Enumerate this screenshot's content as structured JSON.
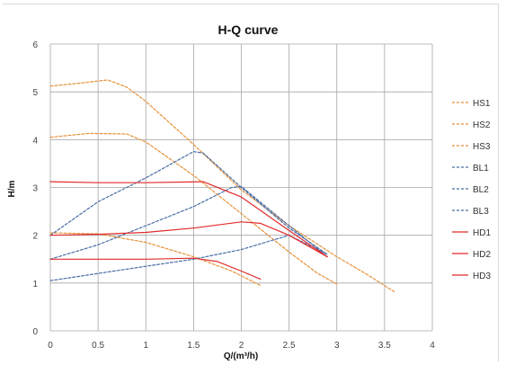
{
  "chart_data": {
    "type": "line",
    "title": "H-Q  curve",
    "xlabel": "Q/(m³/h)",
    "ylabel": "H/m",
    "xlim": [
      0,
      4
    ],
    "ylim": [
      0,
      6
    ],
    "xticks": [
      "0",
      "0.5",
      "1",
      "1.5",
      "2",
      "2.5",
      "3",
      "3.5",
      "4"
    ],
    "yticks": [
      "0",
      "1",
      "2",
      "3",
      "4",
      "5",
      "6"
    ],
    "grid": true,
    "legend_position": "right",
    "series": [
      {
        "name": "HS1",
        "color": "#e69138",
        "style": "dashed",
        "points": [
          [
            0,
            5.12
          ],
          [
            0.3,
            5.18
          ],
          [
            0.6,
            5.25
          ],
          [
            0.8,
            5.1
          ],
          [
            1.0,
            4.8
          ],
          [
            1.5,
            3.9
          ],
          [
            2.0,
            2.95
          ],
          [
            2.5,
            2.2
          ],
          [
            3.0,
            1.55
          ],
          [
            3.3,
            1.2
          ],
          [
            3.6,
            0.82
          ]
        ]
      },
      {
        "name": "HS2",
        "color": "#e69138",
        "style": "dashed",
        "points": [
          [
            0,
            4.05
          ],
          [
            0.4,
            4.13
          ],
          [
            0.8,
            4.12
          ],
          [
            1.0,
            3.95
          ],
          [
            1.5,
            3.25
          ],
          [
            2.0,
            2.45
          ],
          [
            2.5,
            1.65
          ],
          [
            2.8,
            1.2
          ],
          [
            3.0,
            0.98
          ]
        ]
      },
      {
        "name": "HS3",
        "color": "#e69138",
        "style": "dashed",
        "points": [
          [
            0,
            2.05
          ],
          [
            0.5,
            2.03
          ],
          [
            1.0,
            1.85
          ],
          [
            1.5,
            1.55
          ],
          [
            1.9,
            1.25
          ],
          [
            2.2,
            0.95
          ]
        ]
      },
      {
        "name": "BL1",
        "color": "#4a6fa5",
        "style": "dashed",
        "points": [
          [
            0,
            1.05
          ],
          [
            0.5,
            1.2
          ],
          [
            1.0,
            1.35
          ],
          [
            1.5,
            1.5
          ],
          [
            2.0,
            1.7
          ],
          [
            2.5,
            2.0
          ],
          [
            2.9,
            1.6
          ]
        ]
      },
      {
        "name": "BL2",
        "color": "#4a6fa5",
        "style": "dashed",
        "points": [
          [
            0,
            1.5
          ],
          [
            0.5,
            1.8
          ],
          [
            1.0,
            2.2
          ],
          [
            1.5,
            2.6
          ],
          [
            1.9,
            3.0
          ],
          [
            2.0,
            3.02
          ],
          [
            2.5,
            2.2
          ],
          [
            2.9,
            1.55
          ]
        ]
      },
      {
        "name": "BL3",
        "color": "#4a6fa5",
        "style": "dashed",
        "points": [
          [
            0,
            2.0
          ],
          [
            0.5,
            2.7
          ],
          [
            1.0,
            3.2
          ],
          [
            1.5,
            3.75
          ],
          [
            1.6,
            3.72
          ],
          [
            2.0,
            3.0
          ],
          [
            2.5,
            2.15
          ],
          [
            2.9,
            1.6
          ]
        ]
      },
      {
        "name": "HD1",
        "color": "#e32b2b",
        "style": "solid",
        "points": [
          [
            0,
            3.12
          ],
          [
            0.5,
            3.1
          ],
          [
            1.0,
            3.1
          ],
          [
            1.6,
            3.12
          ],
          [
            2.0,
            2.8
          ],
          [
            2.5,
            2.1
          ],
          [
            2.9,
            1.55
          ]
        ]
      },
      {
        "name": "HD2",
        "color": "#e32b2b",
        "style": "solid",
        "points": [
          [
            0,
            2.0
          ],
          [
            0.5,
            2.02
          ],
          [
            1.0,
            2.06
          ],
          [
            1.5,
            2.15
          ],
          [
            2.0,
            2.28
          ],
          [
            2.2,
            2.25
          ],
          [
            2.5,
            2.0
          ],
          [
            2.9,
            1.55
          ]
        ]
      },
      {
        "name": "HD3",
        "color": "#e32b2b",
        "style": "solid",
        "points": [
          [
            0,
            1.5
          ],
          [
            0.5,
            1.5
          ],
          [
            1.0,
            1.5
          ],
          [
            1.5,
            1.52
          ],
          [
            1.75,
            1.45
          ],
          [
            2.0,
            1.25
          ],
          [
            2.2,
            1.08
          ]
        ]
      }
    ]
  }
}
